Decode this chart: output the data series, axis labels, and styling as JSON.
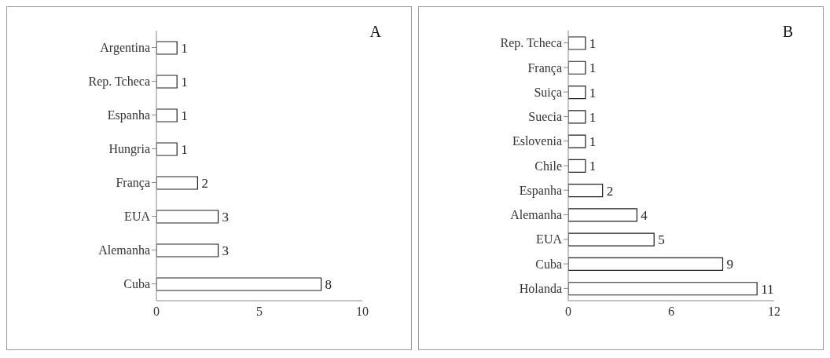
{
  "chart_data": [
    {
      "type": "bar",
      "title": "A",
      "orientation": "horizontal",
      "categories": [
        "Argentina",
        "Rep. Tcheca",
        "Espanha",
        "Hungria",
        "França",
        "EUA",
        "Alemanha",
        "Cuba"
      ],
      "values": [
        1,
        1,
        1,
        1,
        2,
        3,
        3,
        8
      ],
      "color": "#ffffff",
      "xlim": [
        0,
        10
      ],
      "xticks": [
        0,
        5,
        10
      ],
      "data_labels": true
    },
    {
      "type": "bar",
      "title": "B",
      "orientation": "horizontal",
      "categories": [
        "Rep. Tcheca",
        "França",
        "Suiça",
        "Suecia",
        "Eslovenia",
        "Chile",
        "Espanha",
        "Alemanha",
        "EUA",
        "Cuba",
        "Holanda"
      ],
      "values": [
        1,
        1,
        1,
        1,
        1,
        1,
        2,
        4,
        5,
        9,
        11
      ],
      "color": "#ffffff",
      "xlim": [
        0,
        12
      ],
      "xticks": [
        0,
        6,
        12
      ],
      "data_labels": true
    }
  ]
}
